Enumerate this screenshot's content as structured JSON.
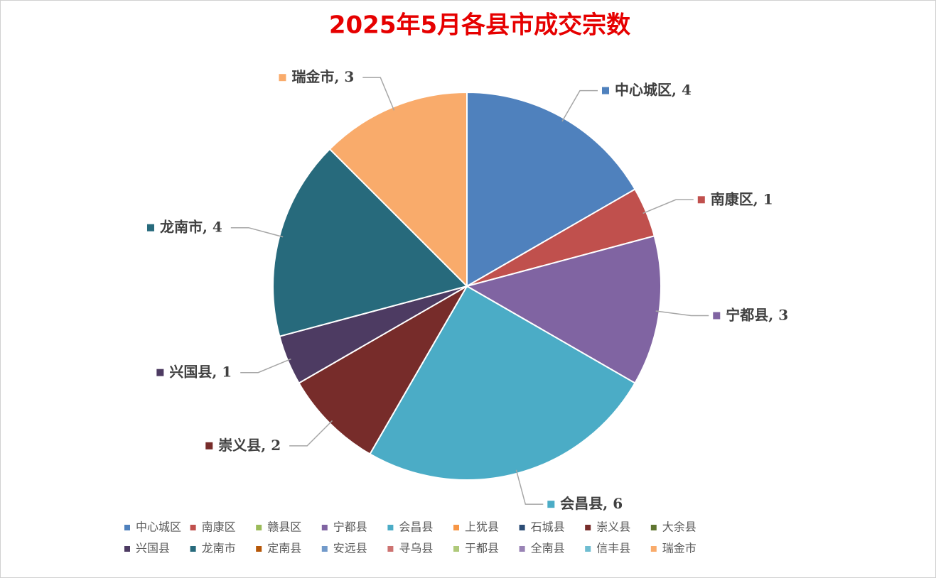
{
  "chart_data": {
    "type": "pie",
    "title": "2025年5月各县市成交宗数",
    "categories": [
      "中心城区",
      "南康区",
      "赣县区",
      "宁都县",
      "会昌县",
      "上犹县",
      "石城县",
      "崇义县",
      "大余县",
      "兴国县",
      "龙南市",
      "定南县",
      "安远县",
      "寻乌县",
      "于都县",
      "全南县",
      "信丰县",
      "瑞金市"
    ],
    "values": [
      4,
      1,
      0,
      3,
      6,
      0,
      0,
      2,
      0,
      1,
      4,
      0,
      0,
      0,
      0,
      0,
      0,
      3
    ],
    "colors": [
      "#4f81bd",
      "#c0504d",
      "#9bbb59",
      "#8064a2",
      "#4bacc6",
      "#f79646",
      "#2c4d75",
      "#772c2a",
      "#5f7530",
      "#4d3b62",
      "#276a7c",
      "#b65708",
      "#729aca",
      "#cd7371",
      "#afc97a",
      "#9983b5",
      "#6fbdd1",
      "#f9ab6b"
    ],
    "legend": "bottom"
  }
}
